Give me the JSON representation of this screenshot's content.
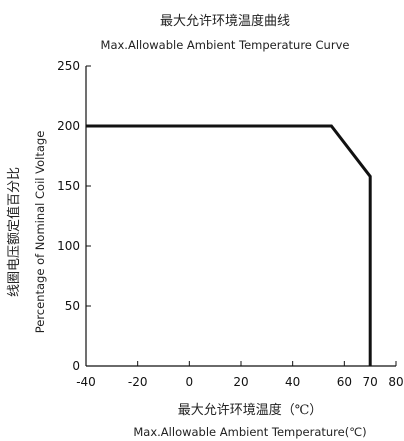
{
  "chart_data": {
    "type": "line",
    "title_cn": "最大允许环境温度曲线",
    "title_en": "Max.Allowable Ambient Temperature Curve",
    "xlabel_cn": "最大允许环境温度（℃）",
    "xlabel_en": "Max.Allowable Ambient Temperature(℃)",
    "ylabel_cn": "线圈电压额定值百分比",
    "ylabel_en": "Percentage of Nominal Coil Voltage",
    "xlim": [
      -40,
      80
    ],
    "ylim": [
      0,
      250
    ],
    "xticks": [
      -40,
      -20,
      0,
      20,
      40,
      60,
      70,
      80
    ],
    "yticks": [
      0,
      50,
      100,
      150,
      200,
      250
    ],
    "grid": false,
    "series": [
      {
        "points": [
          [
            -40,
            200
          ],
          [
            55,
            200
          ],
          [
            70,
            158
          ],
          [
            70,
            0
          ]
        ],
        "color": "#111111"
      }
    ]
  }
}
